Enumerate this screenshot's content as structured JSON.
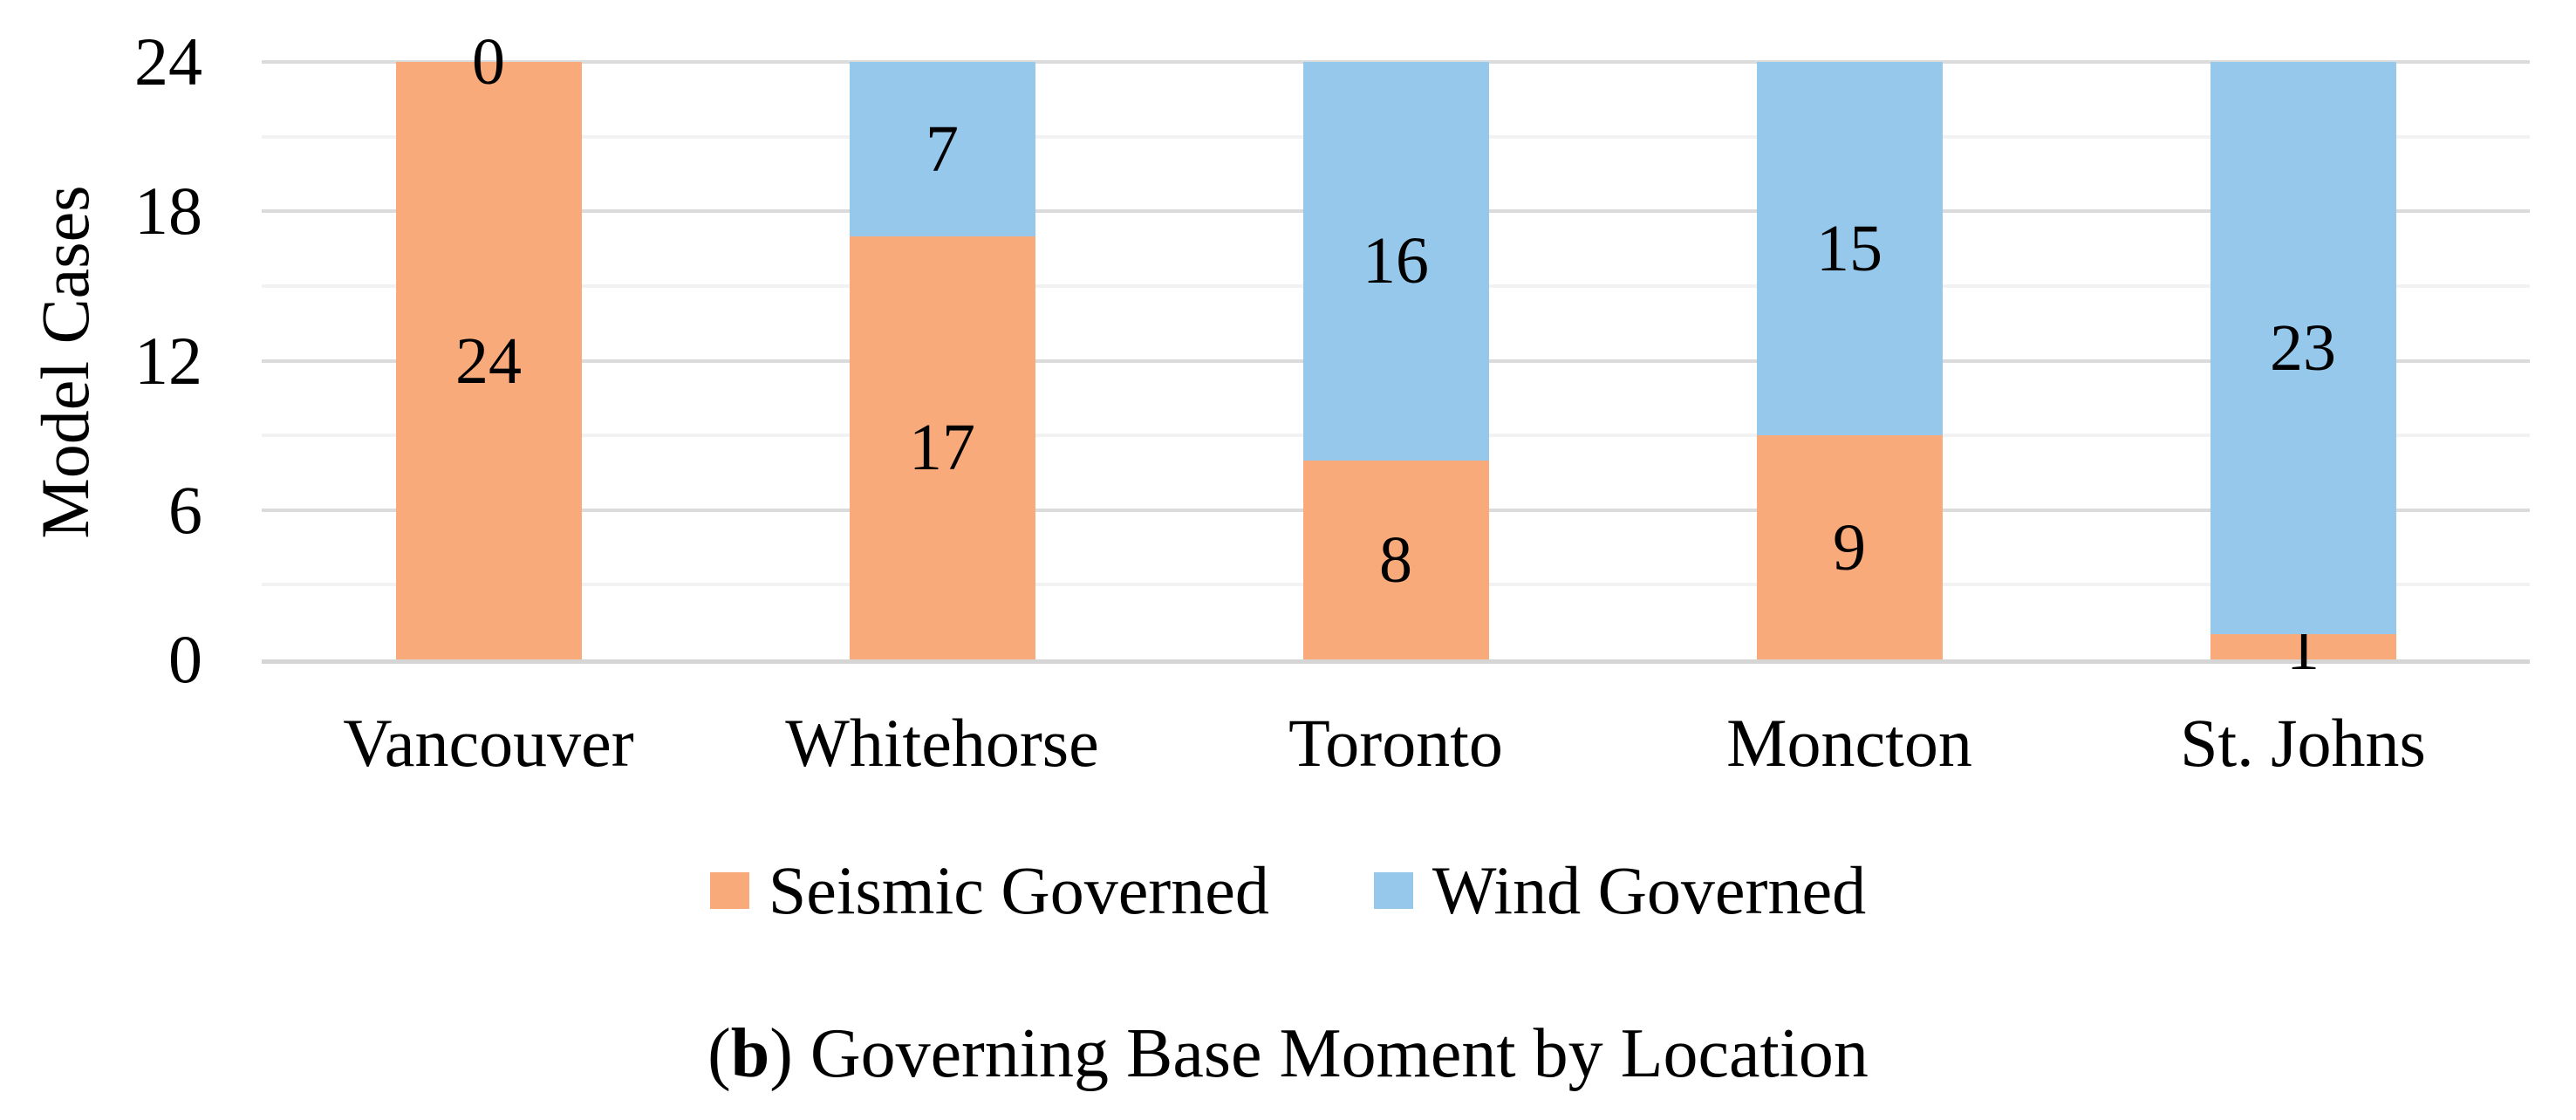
{
  "chart_data": {
    "type": "bar",
    "stacked": true,
    "title": "",
    "xlabel": "",
    "ylabel": "Model Cases",
    "categories": [
      "Vancouver",
      "Whitehorse",
      "Toronto",
      "Moncton",
      "St. Johns"
    ],
    "series": [
      {
        "name": "Seismic Governed",
        "color": "#F9AA7B",
        "values": [
          24,
          17,
          8,
          9,
          1
        ]
      },
      {
        "name": "Wind Governed",
        "color": "#95C8EB",
        "values": [
          0,
          7,
          16,
          15,
          23
        ]
      }
    ],
    "ylim": [
      0,
      24
    ],
    "y_major_ticks": [
      0,
      6,
      12,
      18,
      24
    ],
    "y_minor_step": 3,
    "grid": {
      "on": true,
      "major_color": "#DBDBDB",
      "minor_color": "#F2F2F2",
      "axis_color": "#D5D5D5"
    },
    "data_labels_shown": true,
    "legend_position": "bottom"
  },
  "caption": {
    "open": "(",
    "bold": "b",
    "rest": ") Governing Base Moment by Location"
  }
}
